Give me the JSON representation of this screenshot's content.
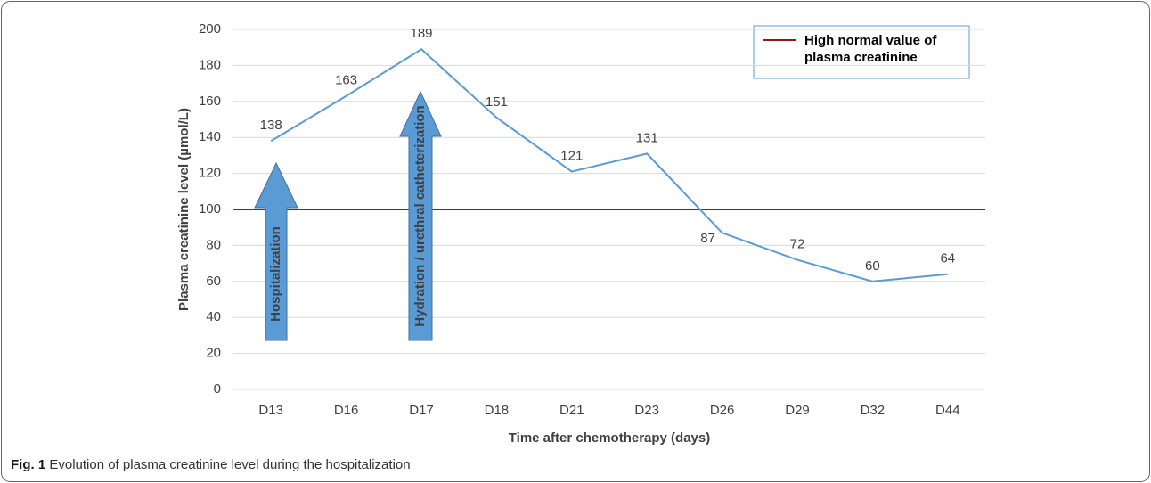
{
  "chart_data": {
    "type": "line",
    "categories": [
      "D13",
      "D16",
      "D17",
      "D18",
      "D21",
      "D23",
      "D26",
      "D29",
      "D32",
      "D44"
    ],
    "series": [
      {
        "name": "Plasma creatinine",
        "color": "#5b9bd5",
        "values": [
          138,
          163,
          189,
          151,
          121,
          131,
          87,
          72,
          60,
          64
        ]
      }
    ],
    "ylim": [
      0,
      200
    ],
    "yticks": [
      0,
      20,
      40,
      60,
      80,
      100,
      120,
      140,
      160,
      180,
      200
    ],
    "grid": true,
    "y_label": "Plasma creatinine level (µmol/L)",
    "x_label": "Time after chemotherapy (days)",
    "reference_line": {
      "value": 100,
      "label": "High normal value of plasma creatinine",
      "color": "#8b1a1a"
    },
    "annotations": [
      "Hospitalization",
      "Hydration / urethral catheterization"
    ],
    "legend": "top-right"
  },
  "caption": {
    "label": "Fig. 1",
    "text": "Evolution of plasma creatinine level during the hospitalization"
  }
}
